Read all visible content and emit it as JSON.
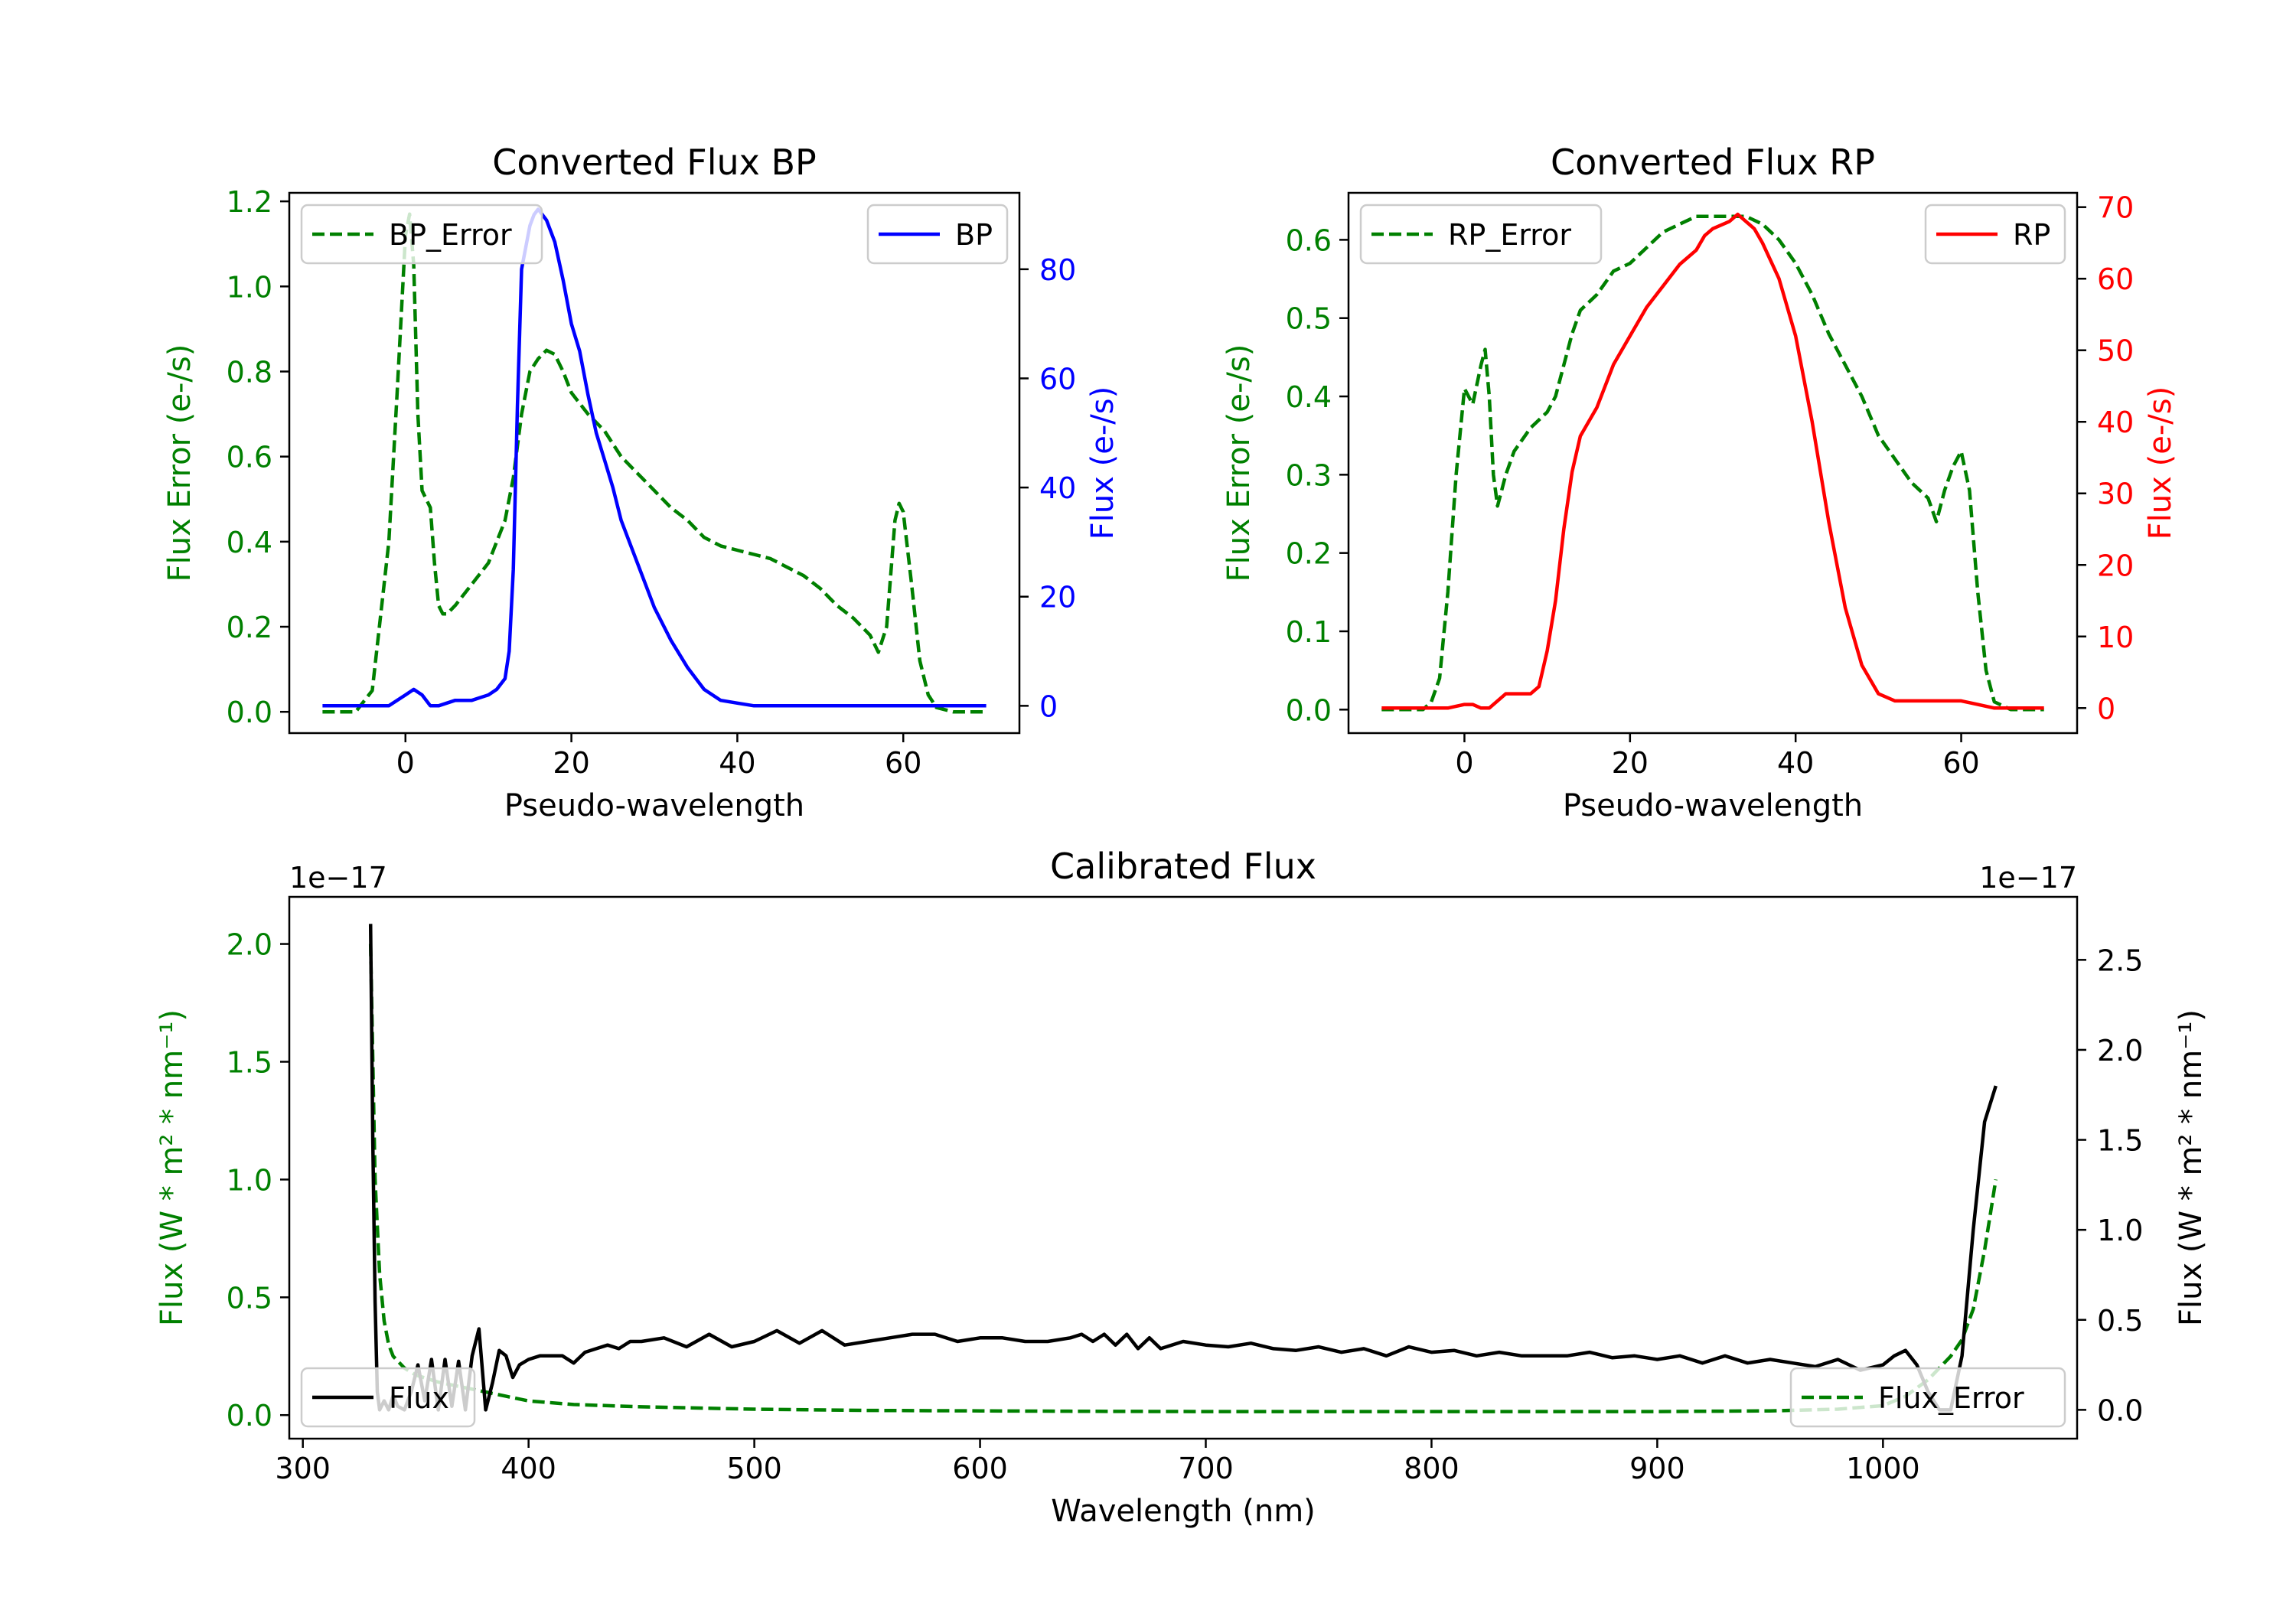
{
  "colors": {
    "bp": "#0000ff",
    "rp": "#ff0000",
    "error": "#008000",
    "flux": "#000000",
    "axis": "#000000"
  },
  "chart_data": [
    {
      "id": "bp",
      "type": "line",
      "title": "Converted Flux BP",
      "xlabel": "Pseudo-wavelength",
      "ylabel_left": "Flux Error (e-/s)",
      "ylabel_right": "Flux (e-/s)",
      "xlim": [
        -14,
        74
      ],
      "ylim_left": [
        -0.05,
        1.22
      ],
      "ylim_right": [
        -5,
        94
      ],
      "xticks": [
        0,
        20,
        40,
        60
      ],
      "yticks_left": [
        0.0,
        0.2,
        0.4,
        0.6,
        0.8,
        1.0,
        1.2
      ],
      "ytick_labels_left": [
        "0.0",
        "0.2",
        "0.4",
        "0.6",
        "0.8",
        "1.0",
        "1.2"
      ],
      "yticks_right": [
        0,
        20,
        40,
        60,
        80
      ],
      "legend_left": {
        "label": "BP_Error",
        "position": "upper left"
      },
      "legend_right": {
        "label": "BP",
        "position": "upper right"
      },
      "series": [
        {
          "name": "BP_Error",
          "axis": "left",
          "style": "dashed",
          "color": "#008000",
          "x": [
            -10,
            -6,
            -4,
            -2,
            -1,
            0,
            0.5,
            1,
            1.5,
            2,
            3,
            3.5,
            4,
            4.5,
            5,
            6,
            8,
            10,
            12,
            13,
            14,
            15,
            16,
            17,
            18,
            19,
            20,
            22,
            24,
            26,
            28,
            30,
            32,
            34,
            36,
            38,
            40,
            42,
            44,
            46,
            48,
            50,
            52,
            54,
            56,
            57,
            58,
            59,
            59.5,
            60,
            61,
            62,
            63,
            64,
            66,
            68,
            70
          ],
          "y": [
            0.0,
            0.0,
            0.05,
            0.4,
            0.75,
            1.12,
            1.17,
            1.05,
            0.7,
            0.52,
            0.48,
            0.35,
            0.25,
            0.23,
            0.23,
            0.25,
            0.3,
            0.35,
            0.45,
            0.55,
            0.7,
            0.8,
            0.83,
            0.85,
            0.84,
            0.8,
            0.75,
            0.7,
            0.66,
            0.6,
            0.56,
            0.52,
            0.48,
            0.45,
            0.41,
            0.39,
            0.38,
            0.37,
            0.36,
            0.34,
            0.32,
            0.29,
            0.25,
            0.22,
            0.18,
            0.14,
            0.2,
            0.45,
            0.49,
            0.47,
            0.3,
            0.12,
            0.04,
            0.01,
            0.0,
            0.0,
            0.0
          ]
        },
        {
          "name": "BP",
          "axis": "right",
          "style": "solid",
          "color": "#0000ff",
          "x": [
            -10,
            -4,
            -2,
            0,
            1,
            2,
            3,
            4,
            6,
            8,
            10,
            11,
            12,
            12.5,
            13,
            13.5,
            14,
            15,
            15.5,
            16,
            17,
            18,
            19,
            20,
            21,
            22,
            23,
            24,
            25,
            26,
            28,
            30,
            32,
            34,
            36,
            38,
            40,
            42,
            44,
            46,
            48,
            50,
            52,
            54,
            56,
            58,
            60,
            62,
            64,
            66,
            68,
            70
          ],
          "y": [
            0,
            0,
            0,
            2,
            3,
            2,
            0,
            0,
            1,
            1,
            2,
            3,
            5,
            10,
            25,
            55,
            80,
            88,
            90,
            91,
            89,
            85,
            78,
            70,
            65,
            57,
            50,
            45,
            40,
            34,
            26,
            18,
            12,
            7,
            3,
            1,
            0.5,
            0,
            0,
            0,
            0,
            0,
            0,
            0,
            0,
            0,
            0,
            0,
            0,
            0,
            0,
            0
          ]
        }
      ]
    },
    {
      "id": "rp",
      "type": "line",
      "title": "Converted Flux RP",
      "xlabel": "Pseudo-wavelength",
      "ylabel_left": "Flux Error (e-/s)",
      "ylabel_right": "Flux (e-/s)",
      "xlim": [
        -14,
        74
      ],
      "ylim_left": [
        -0.03,
        0.66
      ],
      "ylim_right": [
        -3.5,
        72
      ],
      "xticks": [
        0,
        20,
        40,
        60
      ],
      "yticks_left": [
        0.0,
        0.1,
        0.2,
        0.3,
        0.4,
        0.5,
        0.6
      ],
      "ytick_labels_left": [
        "0.0",
        "0.1",
        "0.2",
        "0.3",
        "0.4",
        "0.5",
        "0.6"
      ],
      "yticks_right": [
        0,
        10,
        20,
        30,
        40,
        50,
        60,
        70
      ],
      "legend_left": {
        "label": "RP_Error",
        "position": "upper left"
      },
      "legend_right": {
        "label": "RP",
        "position": "upper right"
      },
      "series": [
        {
          "name": "RP_Error",
          "axis": "left",
          "style": "dashed",
          "color": "#008000",
          "x": [
            -10,
            -5,
            -4,
            -3,
            -2,
            -1,
            0,
            1,
            2,
            2.5,
            3,
            3.5,
            4,
            4.5,
            5,
            6,
            8,
            10,
            11,
            12,
            13,
            14,
            16,
            18,
            20,
            22,
            24,
            26,
            28,
            30,
            32,
            34,
            36,
            38,
            40,
            42,
            44,
            46,
            48,
            50,
            52,
            54,
            55,
            56,
            57,
            58,
            59,
            60,
            61,
            62,
            63,
            64,
            66,
            68,
            70
          ],
          "y": [
            0.0,
            0.0,
            0.01,
            0.04,
            0.15,
            0.3,
            0.41,
            0.39,
            0.44,
            0.46,
            0.4,
            0.3,
            0.26,
            0.28,
            0.3,
            0.33,
            0.36,
            0.38,
            0.4,
            0.44,
            0.48,
            0.51,
            0.53,
            0.56,
            0.57,
            0.59,
            0.61,
            0.62,
            0.63,
            0.63,
            0.63,
            0.63,
            0.62,
            0.6,
            0.57,
            0.53,
            0.48,
            0.44,
            0.4,
            0.35,
            0.32,
            0.29,
            0.28,
            0.27,
            0.24,
            0.28,
            0.31,
            0.33,
            0.28,
            0.15,
            0.05,
            0.01,
            0.0,
            0.0,
            0.0
          ]
        },
        {
          "name": "RP",
          "axis": "right",
          "style": "solid",
          "color": "#ff0000",
          "x": [
            -10,
            -4,
            -2,
            0,
            1,
            2,
            3,
            4,
            5,
            6,
            8,
            9,
            10,
            11,
            12,
            13,
            14,
            16,
            18,
            20,
            22,
            24,
            26,
            28,
            29,
            30,
            32,
            33,
            34,
            35,
            36,
            38,
            40,
            42,
            44,
            46,
            48,
            50,
            52,
            54,
            56,
            58,
            60,
            62,
            64,
            66,
            68,
            70
          ],
          "y": [
            0,
            0,
            0,
            0.5,
            0.5,
            0,
            0,
            1,
            2,
            2,
            2,
            3,
            8,
            15,
            25,
            33,
            38,
            42,
            48,
            52,
            56,
            59,
            62,
            64,
            66,
            67,
            68,
            69,
            68,
            67,
            65,
            60,
            52,
            40,
            26,
            14,
            6,
            2,
            1,
            1,
            1,
            1,
            1,
            0.5,
            0,
            0,
            0,
            0
          ]
        }
      ]
    },
    {
      "id": "calibrated",
      "type": "line",
      "title": "Calibrated Flux",
      "xlabel": "Wavelength (nm)",
      "ylabel_left": "Flux (W * m² * nm⁻¹)",
      "ylabel_right": "Flux (W * m² * nm⁻¹)",
      "offset_left": "1e−17",
      "offset_right": "1e−17",
      "xlim": [
        294,
        1086
      ],
      "ylim_left": [
        -0.1,
        2.2
      ],
      "ylim_right": [
        -0.16,
        2.85
      ],
      "xticks": [
        300,
        400,
        500,
        600,
        700,
        800,
        900,
        1000
      ],
      "yticks_left": [
        0.0,
        0.5,
        1.0,
        1.5,
        2.0
      ],
      "ytick_labels_left": [
        "0.0",
        "0.5",
        "1.0",
        "1.5",
        "2.0"
      ],
      "yticks_right": [
        0.0,
        0.5,
        1.0,
        1.5,
        2.0,
        2.5
      ],
      "ytick_labels_right": [
        "0.0",
        "0.5",
        "1.0",
        "1.5",
        "2.0",
        "2.5"
      ],
      "legend_left": {
        "label": "Flux",
        "position": "lower left"
      },
      "legend_right": {
        "label": "Flux_Error",
        "position": "lower right"
      },
      "series": [
        {
          "name": "Flux_Error",
          "axis": "left",
          "style": "dashed",
          "color": "#008000",
          "x": [
            330,
            332,
            334,
            336,
            338,
            340,
            345,
            350,
            360,
            370,
            380,
            390,
            400,
            420,
            450,
            500,
            550,
            600,
            650,
            700,
            750,
            800,
            850,
            900,
            950,
            980,
            1000,
            1010,
            1020,
            1030,
            1035,
            1040,
            1045,
            1050
          ],
          "y": [
            2.0,
            1.0,
            0.6,
            0.4,
            0.3,
            0.25,
            0.2,
            0.17,
            0.14,
            0.12,
            0.1,
            0.08,
            0.06,
            0.045,
            0.035,
            0.025,
            0.02,
            0.018,
            0.016,
            0.015,
            0.015,
            0.015,
            0.015,
            0.015,
            0.018,
            0.025,
            0.04,
            0.08,
            0.15,
            0.25,
            0.32,
            0.45,
            0.7,
            1.0
          ]
        },
        {
          "name": "Flux",
          "axis": "right",
          "style": "solid",
          "color": "#000000",
          "x": [
            330,
            331,
            332,
            333,
            334,
            336,
            338,
            340,
            342,
            345,
            348,
            351,
            354,
            357,
            360,
            363,
            366,
            369,
            372,
            375,
            378,
            381,
            384,
            387,
            390,
            393,
            396,
            400,
            405,
            410,
            415,
            420,
            425,
            430,
            435,
            440,
            445,
            450,
            460,
            470,
            480,
            490,
            500,
            510,
            520,
            530,
            540,
            550,
            560,
            570,
            580,
            590,
            600,
            610,
            620,
            630,
            640,
            645,
            650,
            655,
            660,
            665,
            670,
            675,
            680,
            690,
            700,
            710,
            720,
            730,
            740,
            750,
            760,
            770,
            780,
            790,
            800,
            810,
            820,
            830,
            840,
            850,
            860,
            870,
            880,
            890,
            900,
            910,
            920,
            930,
            940,
            950,
            960,
            970,
            980,
            990,
            1000,
            1005,
            1010,
            1015,
            1020,
            1025,
            1030,
            1035,
            1040,
            1045,
            1050
          ],
          "y": [
            2.7,
            1.5,
            0.6,
            0.1,
            0.0,
            0.05,
            0.0,
            0.08,
            0.02,
            0.0,
            0.1,
            0.25,
            0.05,
            0.28,
            0.0,
            0.28,
            0.02,
            0.27,
            0.0,
            0.3,
            0.45,
            0.0,
            0.15,
            0.33,
            0.3,
            0.18,
            0.25,
            0.28,
            0.3,
            0.3,
            0.3,
            0.26,
            0.32,
            0.34,
            0.36,
            0.34,
            0.38,
            0.38,
            0.4,
            0.35,
            0.42,
            0.35,
            0.38,
            0.44,
            0.37,
            0.44,
            0.36,
            0.38,
            0.4,
            0.42,
            0.42,
            0.38,
            0.4,
            0.4,
            0.38,
            0.38,
            0.4,
            0.42,
            0.38,
            0.42,
            0.36,
            0.42,
            0.34,
            0.4,
            0.34,
            0.38,
            0.36,
            0.35,
            0.37,
            0.34,
            0.33,
            0.35,
            0.32,
            0.34,
            0.3,
            0.35,
            0.32,
            0.33,
            0.3,
            0.32,
            0.3,
            0.3,
            0.3,
            0.32,
            0.29,
            0.3,
            0.28,
            0.3,
            0.26,
            0.3,
            0.26,
            0.28,
            0.26,
            0.24,
            0.28,
            0.22,
            0.25,
            0.3,
            0.33,
            0.25,
            0.1,
            0.0,
            0.0,
            0.3,
            1.0,
            1.6,
            1.8
          ]
        }
      ]
    }
  ]
}
